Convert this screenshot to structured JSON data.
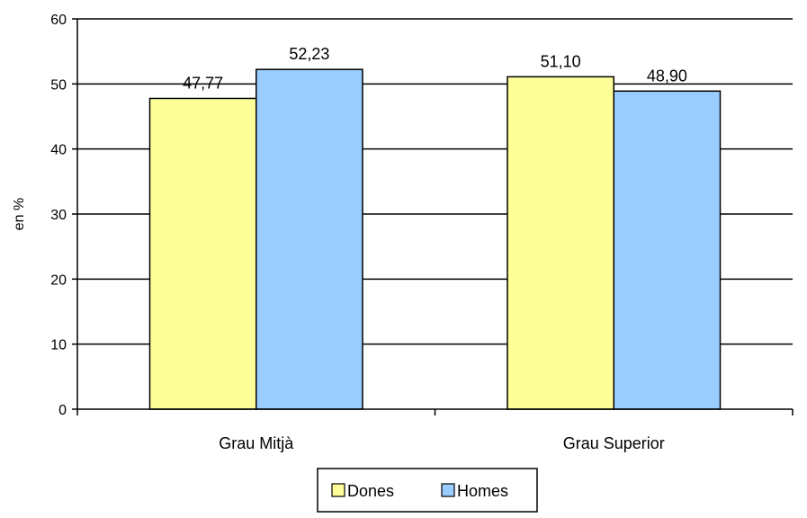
{
  "chart_data": {
    "type": "bar",
    "title": "",
    "xlabel": "",
    "ylabel": "en %",
    "ylim": [
      0,
      60
    ],
    "yticks": [
      0,
      10,
      20,
      30,
      40,
      50,
      60
    ],
    "grid": true,
    "legend_position": "bottom",
    "categories": [
      "Grau Mitjà",
      "Grau Superior"
    ],
    "series": [
      {
        "name": "Dones",
        "color": "#ffff99",
        "values": [
          47.77,
          51.1
        ],
        "labels": [
          "47,77",
          "51,10"
        ]
      },
      {
        "name": "Homes",
        "color": "#99ccff",
        "values": [
          52.23,
          48.9
        ],
        "labels": [
          "52,23",
          "48,90"
        ]
      }
    ]
  }
}
